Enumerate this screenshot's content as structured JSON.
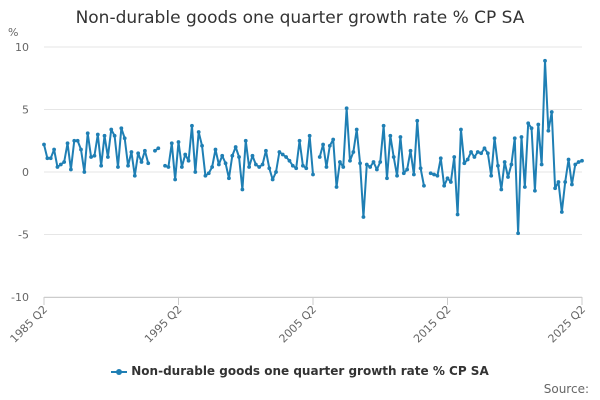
{
  "chart_data": {
    "type": "line",
    "title": "Non-durable goods one quarter growth rate % CP SA",
    "ylabel": "%",
    "ylim": [
      -10,
      10
    ],
    "yticks": [
      10,
      5,
      0,
      -5,
      -10
    ],
    "x_tick_labels": [
      "1985 Q2",
      "1995 Q2",
      "2005 Q2",
      "2015 Q2",
      "2025 Q2"
    ],
    "x_tick_index": [
      0,
      40,
      80,
      120,
      160
    ],
    "grid": true,
    "legend_position": "bottom",
    "series": [
      {
        "name": "Non-durable goods one quarter growth rate % CP SA",
        "color": "#1f7fb4",
        "start": "1985 Q2",
        "values": [
          2.2,
          1.1,
          1.1,
          1.8,
          0.4,
          0.6,
          0.8,
          2.3,
          0.2,
          2.5,
          2.5,
          1.8,
          0.0,
          3.1,
          1.2,
          1.3,
          3.0,
          0.5,
          2.9,
          1.2,
          3.4,
          2.9,
          0.4,
          3.5,
          2.7,
          0.5,
          1.6,
          -0.3,
          1.5,
          0.8,
          1.7,
          0.7,
          null,
          1.7,
          1.9,
          null,
          0.5,
          0.4,
          2.3,
          -0.6,
          2.4,
          0.4,
          1.4,
          0.9,
          3.7,
          0.0,
          3.2,
          2.1,
          -0.3,
          -0.1,
          0.4,
          1.8,
          0.6,
          1.3,
          0.7,
          -0.5,
          1.3,
          2.0,
          1.2,
          -1.4,
          2.5,
          0.4,
          1.3,
          0.6,
          0.4,
          0.6,
          1.7,
          0.3,
          -0.6,
          0.0,
          1.6,
          1.4,
          1.2,
          0.9,
          0.5,
          0.3,
          2.5,
          0.5,
          0.3,
          2.9,
          -0.2,
          null,
          1.2,
          2.2,
          0.4,
          2.1,
          2.6,
          -1.2,
          0.8,
          0.4,
          5.1,
          0.9,
          1.6,
          3.4,
          0.7,
          -3.6,
          0.6,
          0.4,
          0.8,
          0.2,
          0.8,
          3.7,
          -0.5,
          2.9,
          1.2,
          -0.3,
          2.8,
          -0.1,
          0.2,
          1.7,
          -0.2,
          4.1,
          0.3,
          -1.1,
          null,
          -0.1,
          -0.2,
          -0.3,
          1.1,
          -1.1,
          -0.5,
          -0.8,
          1.2,
          -3.4,
          3.4,
          0.7,
          1.0,
          1.6,
          1.2,
          1.6,
          1.5,
          1.9,
          1.5,
          -0.3,
          2.7,
          0.5,
          -1.4,
          0.8,
          -0.4,
          0.6,
          2.7,
          -4.9,
          2.8,
          -1.2,
          3.9,
          3.5,
          -1.5,
          3.8,
          0.6,
          8.9,
          3.3,
          4.8,
          -1.3,
          -0.8,
          -3.2,
          -0.8,
          1.0,
          -1.0,
          0.6,
          0.8,
          0.9
        ]
      }
    ]
  },
  "legend": {
    "label": "Non-durable goods one quarter growth rate % CP SA"
  },
  "source": {
    "label": "Source:"
  }
}
